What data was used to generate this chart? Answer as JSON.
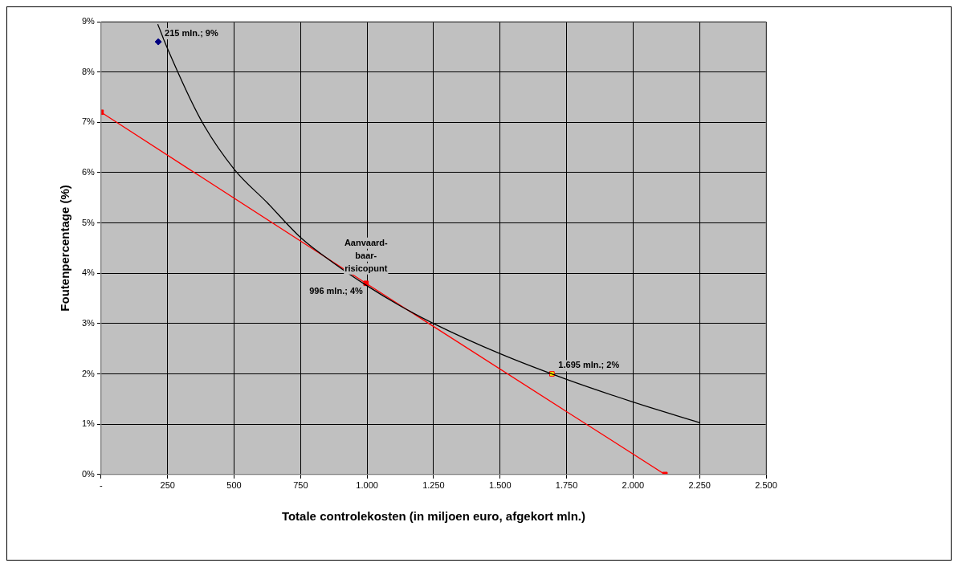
{
  "chart_data": {
    "type": "line",
    "xlabel": "Totale controlekosten (in miljoen euro, afgekort mln.)",
    "ylabel": "Foutenpercentage (%)",
    "xlim": [
      0,
      2500
    ],
    "xticks": [
      {
        "value": 0,
        "label": "-"
      },
      250,
      500,
      750,
      {
        "value": 1000,
        "label": "1.000"
      },
      {
        "value": 1250,
        "label": "1.250"
      },
      {
        "value": 1500,
        "label": "1.500"
      },
      {
        "value": 1750,
        "label": "1.750"
      },
      {
        "value": 2000,
        "label": "2.000"
      },
      {
        "value": 2250,
        "label": "2.250"
      },
      {
        "value": 2500,
        "label": "2.500"
      }
    ],
    "ylim": [
      0,
      9
    ],
    "yticks": [
      {
        "value": 0,
        "label": "0%"
      },
      {
        "value": 1,
        "label": "1%"
      },
      {
        "value": 2,
        "label": "2%"
      },
      {
        "value": 3,
        "label": "3%"
      },
      {
        "value": 4,
        "label": "4%"
      },
      {
        "value": 5,
        "label": "5%"
      },
      {
        "value": 6,
        "label": "6%"
      },
      {
        "value": 7,
        "label": "7%"
      },
      {
        "value": 8,
        "label": "8%"
      },
      {
        "value": 9,
        "label": "9%"
      }
    ],
    "grid": true,
    "legend": false,
    "series": [
      {
        "type": "line",
        "color": "#000000",
        "marker": "none",
        "x": [
          213,
          250,
          375,
          500,
          625,
          750,
          875,
          1000,
          1125,
          1250,
          1500,
          1750,
          2000,
          2250
        ],
        "values": [
          8.95,
          8.46,
          7.05,
          6.07,
          5.4,
          4.71,
          4.2,
          3.75,
          3.35,
          3.0,
          2.4,
          1.89,
          1.44,
          1.03
        ]
      },
      {
        "type": "line",
        "color": "#ff0000",
        "marker": "square",
        "x": [
          0,
          996,
          2120
        ],
        "values": [
          7.2,
          3.8,
          0
        ],
        "value_labels": [
          null,
          "996 mln.; 4%",
          null
        ]
      },
      {
        "type": "scatter",
        "color": "#000080",
        "marker": "diamond",
        "x": [
          215
        ],
        "values": [
          8.6
        ],
        "value_labels": [
          "215 mln.; 9%"
        ]
      },
      {
        "type": "scatter",
        "color": "#ffff00",
        "marker": "square",
        "x": [
          1695
        ],
        "values": [
          2.0
        ],
        "value_labels": [
          "1.695 mln.; 2%"
        ]
      }
    ],
    "annotations": [
      {
        "text": "Aanvaard-baar-risicopunt",
        "x": 996,
        "y": 3.8
      }
    ]
  }
}
